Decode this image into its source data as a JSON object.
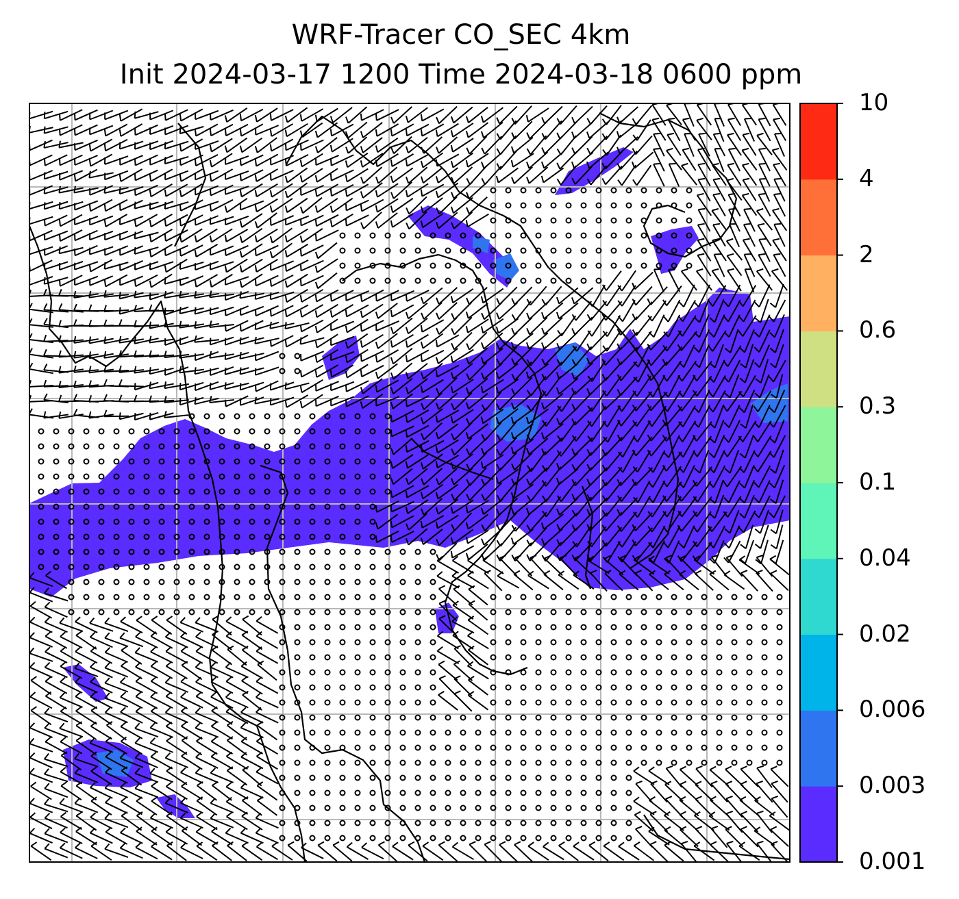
{
  "title": {
    "line1": "WRF-Tracer CO_SEC 4km",
    "line2": "Init 2024-03-17 1200 Time 2024-03-18 0600 ppm"
  },
  "colorbar": {
    "levels": [
      "0.001",
      "0.003",
      "0.006",
      "0.02",
      "0.04",
      "0.1",
      "0.3",
      "0.6",
      "2",
      "4",
      "10"
    ],
    "colors": [
      "#5a2cff",
      "#2f75f0",
      "#00b3e8",
      "#2fd9d0",
      "#5ff5b8",
      "#8ff59a",
      "#cfe082",
      "#ffb060",
      "#ff7038",
      "#ff2a14"
    ]
  },
  "map": {
    "tracer_fill_color": "#5a2cff",
    "tracer_core_color": "#2f75f0",
    "grid_color": "#b8b8b8",
    "wind_barb_color": "#000000",
    "coastline_color": "#000000"
  }
}
